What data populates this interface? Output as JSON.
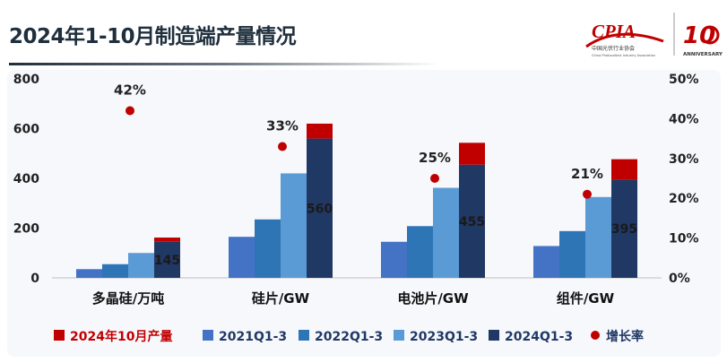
{
  "header": {
    "title": "2024年1-10月制造端产量情况",
    "logo_text": "CPIA",
    "logo_sub": "中国光伏行业协会",
    "logo_sub_en": "China Photovoltaic Industry Association",
    "anniversary_mark": "10",
    "anniversary_text": "ANNIVERSARY"
  },
  "colors": {
    "oct2024": "#c00000",
    "q2021": "#4472c4",
    "q2022": "#2e75b6",
    "q2023": "#5b9bd5",
    "q2024": "#203864",
    "growth": "#c00000",
    "title_color": "#1f2f3d",
    "legend_oct": "#c00000",
    "legend_other": "#1f3864"
  },
  "chart_data": {
    "type": "bar",
    "categories": [
      "多晶硅/万吨",
      "硅片/GW",
      "电池片/GW",
      "组件/GW"
    ],
    "series": [
      {
        "name": "2021Q1-3",
        "values": [
          35,
          165,
          145,
          128
        ]
      },
      {
        "name": "2022Q1-3",
        "values": [
          55,
          235,
          208,
          188
        ]
      },
      {
        "name": "2023Q1-3",
        "values": [
          100,
          420,
          362,
          325
        ]
      },
      {
        "name": "2024Q1-3",
        "values": [
          145,
          560,
          455,
          395
        ],
        "labels": [
          "145",
          "560",
          "455",
          "395"
        ]
      },
      {
        "name": "2024年10月产量",
        "values": [
          17,
          60,
          88,
          82
        ]
      }
    ],
    "growth_series": {
      "name": "增长率",
      "values": [
        42,
        33,
        25,
        21
      ],
      "labels": [
        "42%",
        "33%",
        "25%",
        "21%"
      ]
    },
    "y_left": {
      "range": [
        0,
        800
      ],
      "ticks": [
        "0",
        "200",
        "400",
        "600",
        "800"
      ]
    },
    "y_right": {
      "range": [
        0,
        50
      ],
      "ticks": [
        "0%",
        "10%",
        "20%",
        "30%",
        "40%",
        "50%"
      ]
    },
    "grid": false,
    "legend": {
      "position": "bottom",
      "entries": [
        "2024年10月产量",
        "2021Q1-3",
        "2022Q1-3",
        "2023Q1-3",
        "2024Q1-3",
        "增长率"
      ]
    }
  }
}
